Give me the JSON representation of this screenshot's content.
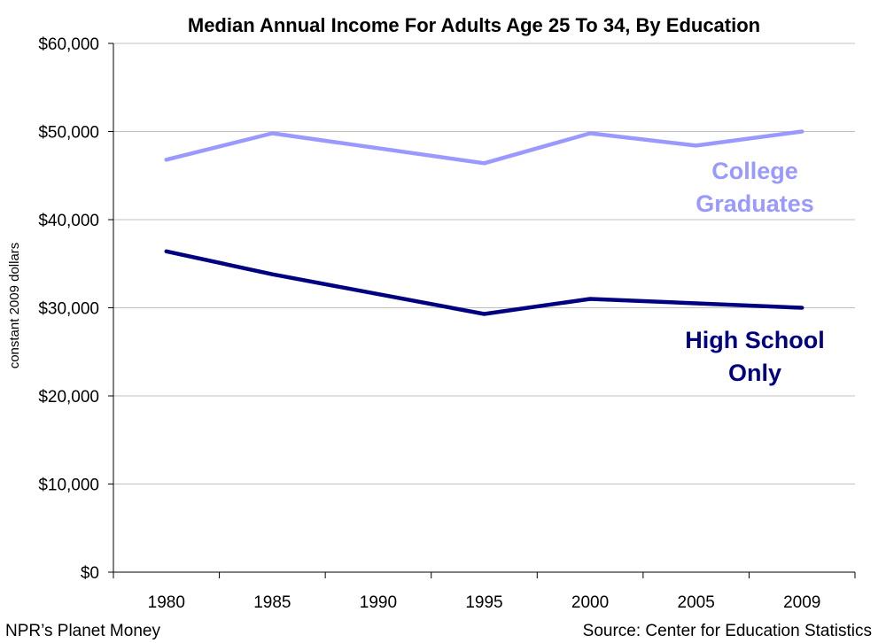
{
  "chart_data": {
    "type": "line",
    "title": "Median Annual Income For Adults Age 25 To 34, By Education",
    "xlabel": "",
    "ylabel": "constant 2009 dollars",
    "categories": [
      "1980",
      "1985",
      "1990",
      "1995",
      "2000",
      "2005",
      "2009"
    ],
    "ylim": [
      0,
      60000
    ],
    "yticks": [
      0,
      10000,
      20000,
      30000,
      40000,
      50000,
      60000
    ],
    "ytick_labels": [
      "$0",
      "$10,000",
      "$20,000",
      "$30,000",
      "$40,000",
      "$50,000",
      "$60,000"
    ],
    "grid": true,
    "series": [
      {
        "name": "College Graduates",
        "label_lines": [
          "College",
          "Graduates"
        ],
        "color": "#9999ff",
        "x": [
          "1980",
          "1985",
          "1995",
          "2000",
          "2005",
          "2009"
        ],
        "values": [
          46800,
          49800,
          46400,
          49800,
          48400,
          50000
        ]
      },
      {
        "name": "High School Only",
        "label_lines": [
          "High School",
          "Only"
        ],
        "color": "#000080",
        "x": [
          "1980",
          "1985",
          "1995",
          "2000",
          "2005",
          "2009"
        ],
        "values": [
          36400,
          33800,
          29300,
          31000,
          30500,
          30000
        ]
      }
    ]
  },
  "footer": {
    "credit": "NPR’s Planet Money",
    "source": "Source: Center for Education Statistics"
  },
  "colors": {
    "axis": "#000000",
    "grid": "#c0c0c0"
  }
}
